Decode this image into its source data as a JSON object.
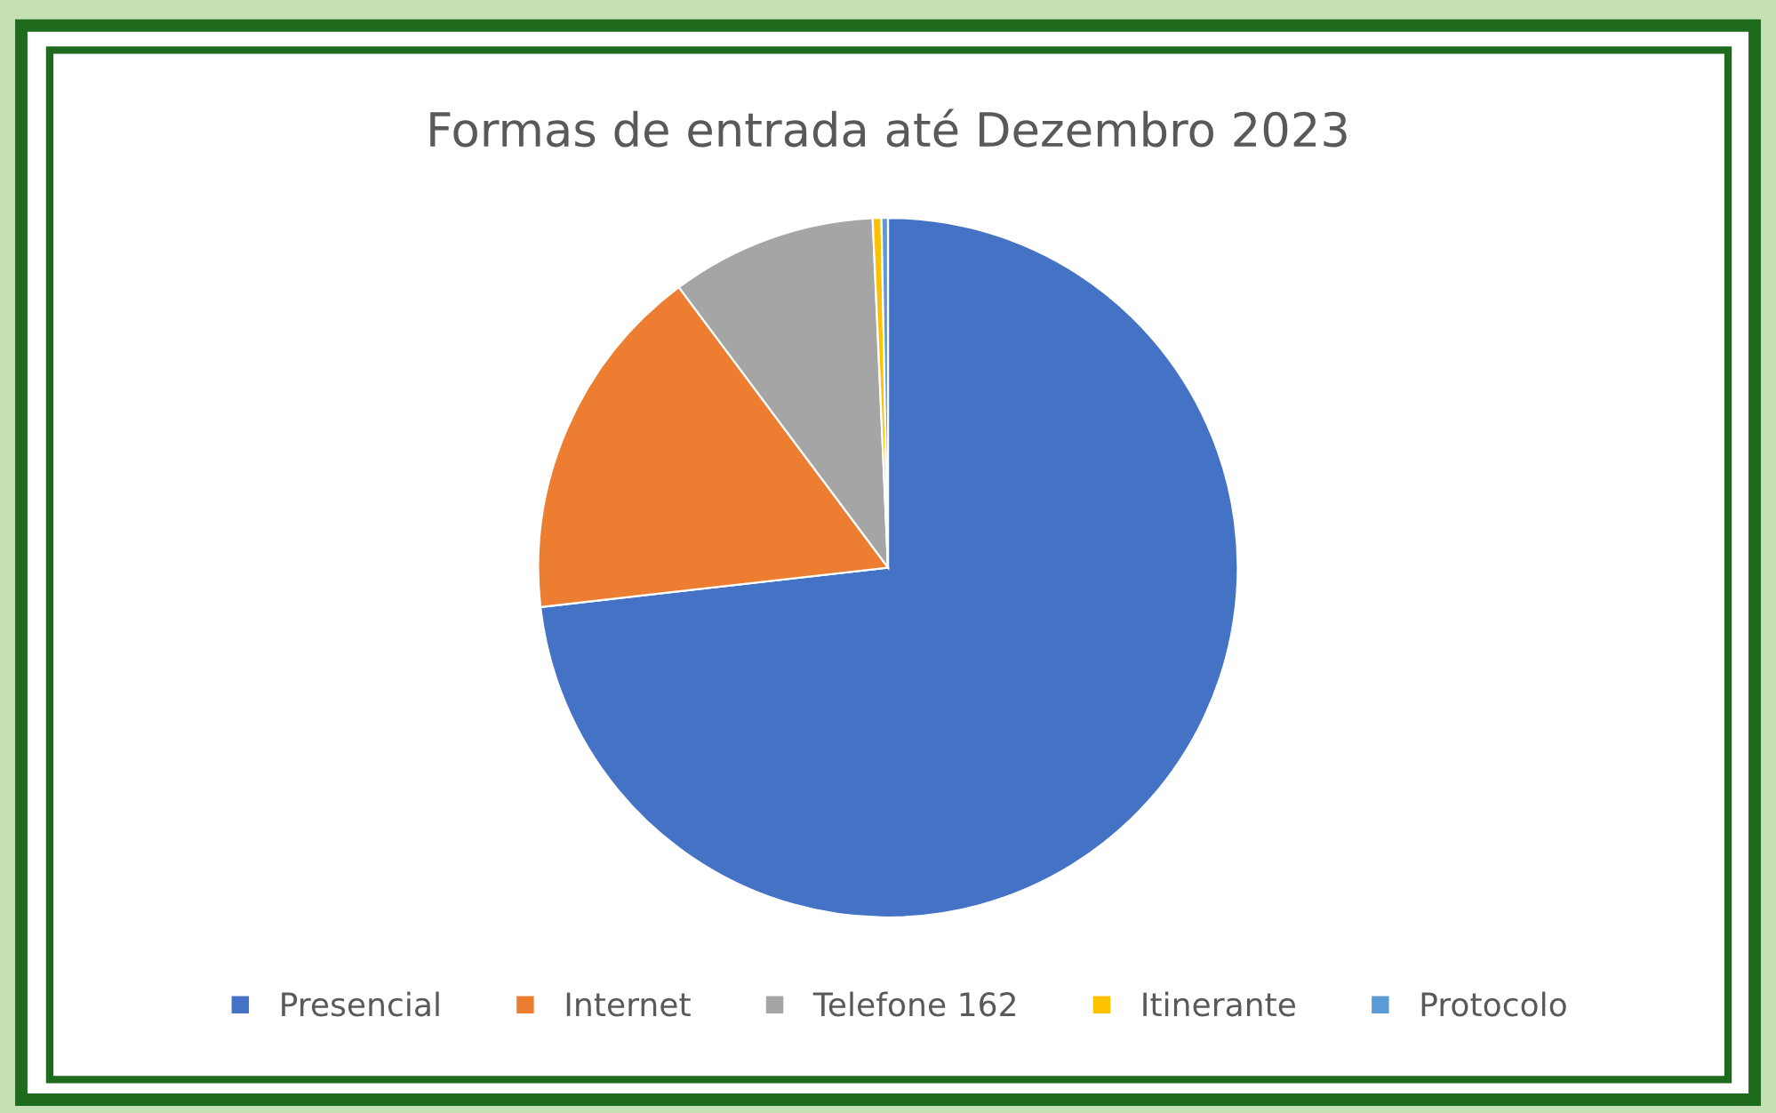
{
  "chart_data": {
    "type": "pie",
    "title": "Formas de entrada até Dezembro 2023",
    "categories": [
      "Presencial",
      "Internet",
      "Telefone 162",
      "Itinerante",
      "Protocolo"
    ],
    "values": [
      73.2,
      16.6,
      9.5,
      0.4,
      0.3
    ],
    "colors": [
      "#4472c4",
      "#ed7d31",
      "#a5a5a5",
      "#ffc000",
      "#5b9bd5"
    ],
    "legend": "bottom"
  }
}
